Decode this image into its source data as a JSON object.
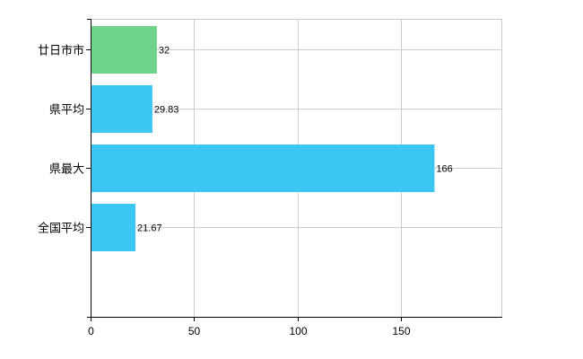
{
  "chart_data": {
    "type": "bar",
    "orientation": "horizontal",
    "categories": [
      "廿日市市",
      "県平均",
      "県最大",
      "全国平均"
    ],
    "values": [
      32,
      29.83,
      166,
      21.67
    ],
    "value_labels": [
      "32",
      "29.83",
      "166",
      "21.67"
    ],
    "bar_colors": [
      "#6fd48a",
      "#3cc6f3",
      "#3cc6f3",
      "#3cc6f3"
    ],
    "xlim": [
      0,
      200
    ],
    "x_ticks": [
      0,
      50,
      100,
      150
    ],
    "grid": true,
    "title": "",
    "xlabel": "",
    "ylabel": ""
  }
}
